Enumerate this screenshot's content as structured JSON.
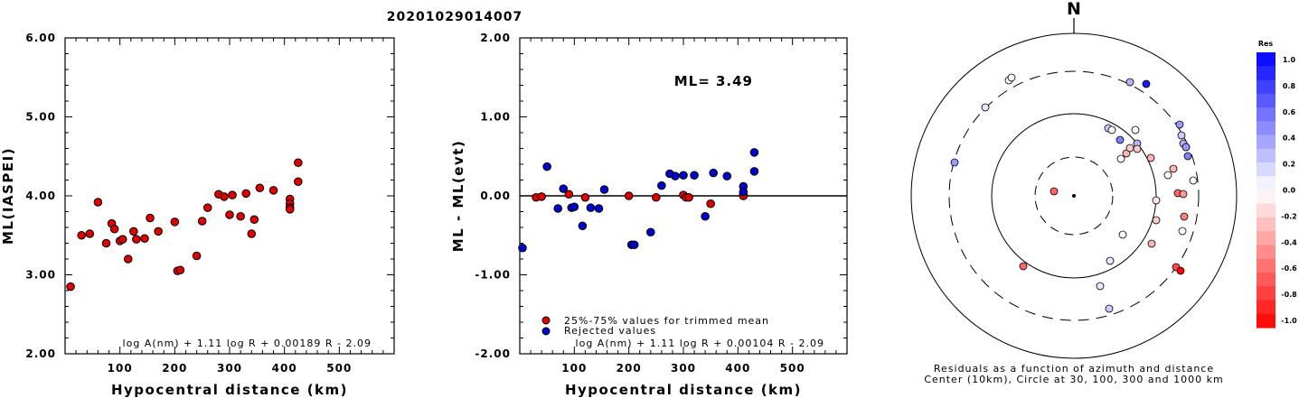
{
  "title": "20201029014007",
  "chart_data": [
    {
      "type": "scatter",
      "xlabel": "Hypocentral distance (km)",
      "ylabel": "ML(IASPEI)",
      "xlim": [
        0,
        600
      ],
      "ylim": [
        2.0,
        6.0
      ],
      "xticks": [
        "100",
        "200",
        "300",
        "400",
        "500"
      ],
      "yticks": [
        "2.00",
        "3.00",
        "4.00",
        "5.00",
        "6.00"
      ],
      "formula": "log A(nm) + 1.11 log R + 0.00189 R - 2.09",
      "series": [
        {
          "color": "#dd0000",
          "x": [
            10,
            30,
            45,
            60,
            75,
            85,
            90,
            100,
            105,
            115,
            125,
            130,
            145,
            155,
            170,
            200,
            205,
            210,
            240,
            250,
            260,
            280,
            290,
            300,
            305,
            320,
            330,
            340,
            345,
            355,
            380,
            410,
            410,
            410,
            410,
            425,
            425
          ],
          "y": [
            2.85,
            3.5,
            3.52,
            3.92,
            3.4,
            3.65,
            3.58,
            3.43,
            3.45,
            3.2,
            3.55,
            3.45,
            3.46,
            3.72,
            3.55,
            3.67,
            3.05,
            3.06,
            3.24,
            3.68,
            3.85,
            4.02,
            3.99,
            3.76,
            4.01,
            3.74,
            4.03,
            3.52,
            3.7,
            4.1,
            4.07,
            3.96,
            3.9,
            3.85,
            3.83,
            4.42,
            4.18
          ]
        }
      ]
    },
    {
      "type": "scatter",
      "xlabel": "Hypocentral distance (km)",
      "ylabel": "ML - ML(evt)",
      "xlim": [
        0,
        600
      ],
      "ylim": [
        -2.0,
        2.0
      ],
      "xticks": [
        "100",
        "200",
        "300",
        "400",
        "500"
      ],
      "yticks": [
        "-2.00",
        "-1.00",
        "0.00",
        "1.00",
        "2.00"
      ],
      "annotation": "ML= 3.49",
      "formula": "log A(nm) + 1.11 log R + 0.00104 R - 2.09",
      "legend": [
        "25%-75% values for trimmed mean",
        "Rejected values"
      ],
      "legend_placement": "bottom-left",
      "series": [
        {
          "name": "25%-75% values for trimmed mean",
          "color": "#dd0000",
          "x": [
            30,
            40,
            90,
            120,
            200,
            250,
            300,
            305,
            310,
            350,
            410,
            410
          ],
          "y": [
            -0.02,
            -0.01,
            0.02,
            -0.02,
            0.0,
            -0.02,
            0.01,
            -0.02,
            -0.02,
            -0.1,
            0.02,
            0.0
          ]
        },
        {
          "name": "Rejected values",
          "color": "#0000cc",
          "x": [
            5,
            50,
            70,
            80,
            95,
            100,
            115,
            130,
            145,
            155,
            205,
            210,
            240,
            260,
            275,
            285,
            300,
            320,
            340,
            355,
            380,
            410,
            410,
            430,
            430
          ],
          "y": [
            -0.66,
            0.37,
            -0.16,
            0.09,
            -0.15,
            -0.14,
            -0.38,
            -0.15,
            -0.16,
            0.08,
            -0.62,
            -0.62,
            -0.46,
            0.13,
            0.28,
            0.25,
            0.26,
            0.26,
            -0.26,
            0.29,
            0.25,
            0.12,
            0.05,
            0.55,
            0.31
          ]
        }
      ]
    },
    {
      "type": "polar-scatter",
      "north_label": "N",
      "caption_line1": "Residuals as a function of azimuth and distance",
      "caption_line2": "Center (10km), Circle at 30, 100, 300 and 1000 km",
      "colorbar_title": "Res",
      "colorbar_ticks": [
        "1.0",
        "0.8",
        "0.6",
        "0.4",
        "0.2",
        "0.0",
        "-0.2",
        "-0.4",
        "-0.6",
        "-0.8",
        "-1.0"
      ],
      "colorbar_range": [
        -1.0,
        1.0
      ],
      "points": {
        "dx": [
          -72,
          -69,
          -98,
          -132,
          62,
          80,
          38,
          42,
          51,
          68,
          70,
          70,
          52,
          58,
          62,
          85,
          117,
          119,
          121,
          124,
          124,
          126,
          110,
          104,
          122,
          91,
          91,
          132,
          54,
          120,
          115,
          121,
          113,
          40,
          86,
          39,
          118,
          29,
          -56,
          -22
        ],
        "dy": [
          -128,
          -131,
          -98,
          -37,
          -126,
          -124,
          -75,
          -73,
          -62,
          -73,
          -58,
          -52,
          -41,
          -47,
          -53,
          -42,
          -79,
          -67,
          -58,
          -54,
          -54,
          -44,
          -30,
          -23,
          23,
          5,
          27,
          -17,
          43,
          39,
          -3,
          -2,
          79,
          72,
          53,
          125,
          83,
          100,
          78,
          -5
        ],
        "res": [
          0.0,
          0.0,
          0.1,
          0.4,
          0.3,
          0.9,
          0.2,
          0.0,
          0.5,
          0.0,
          0.3,
          -0.2,
          0.0,
          -0.3,
          -0.2,
          -0.3,
          0.4,
          0.2,
          0.3,
          0.4,
          0.4,
          0.5,
          -0.3,
          0.0,
          -0.5,
          -0.1,
          -0.2,
          0.0,
          0.0,
          0.0,
          -0.6,
          -0.4,
          -0.7,
          0.1,
          -0.3,
          0.2,
          -1.0,
          0.1,
          -0.6,
          -0.6
        ]
      }
    }
  ]
}
